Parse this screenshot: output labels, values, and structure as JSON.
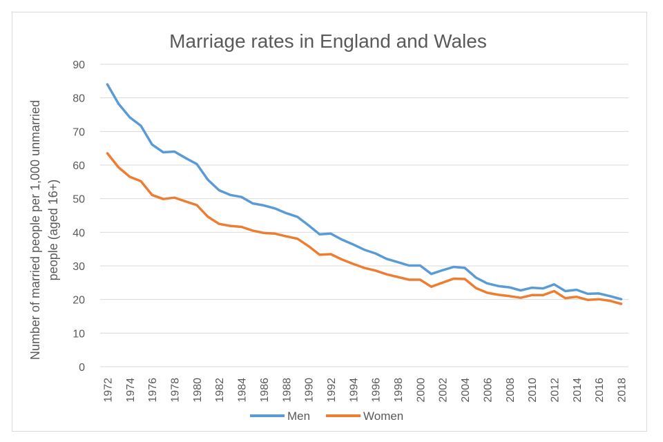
{
  "chart_data": {
    "type": "line",
    "title": "Marriage rates in England and Wales",
    "xlabel": "",
    "ylabel_lines": [
      "Number of married people per 1,000 unmarried",
      "people (aged 16+)"
    ],
    "ylim": [
      0,
      90
    ],
    "yticks": [
      0,
      10,
      20,
      30,
      40,
      50,
      60,
      70,
      80,
      90
    ],
    "grid": true,
    "legend_position": "bottom",
    "x": [
      1972,
      1973,
      1974,
      1975,
      1976,
      1977,
      1978,
      1979,
      1980,
      1981,
      1982,
      1983,
      1984,
      1985,
      1986,
      1987,
      1988,
      1989,
      1990,
      1991,
      1992,
      1993,
      1994,
      1995,
      1996,
      1997,
      1998,
      1999,
      2000,
      2001,
      2002,
      2003,
      2004,
      2005,
      2006,
      2007,
      2008,
      2009,
      2010,
      2011,
      2012,
      2013,
      2014,
      2015,
      2016,
      2017,
      2018
    ],
    "xtick_labels": [
      "1972",
      "1974",
      "1976",
      "1978",
      "1980",
      "1982",
      "1984",
      "1986",
      "1988",
      "1990",
      "1992",
      "1994",
      "1996",
      "1998",
      "2000",
      "2002",
      "2004",
      "2006",
      "2008",
      "2010",
      "2012",
      "2014",
      "2016",
      "2018"
    ],
    "series": [
      {
        "name": "Men",
        "color": "#5b9bd5",
        "values": [
          84.0,
          78.2,
          74.2,
          71.7,
          66.1,
          63.8,
          64.0,
          62.1,
          60.3,
          55.6,
          52.5,
          51.1,
          50.5,
          48.6,
          48.0,
          47.1,
          45.7,
          44.6,
          42.1,
          39.4,
          39.6,
          37.8,
          36.4,
          34.8,
          33.7,
          32.1,
          31.1,
          30.1,
          30.1,
          27.6,
          28.7,
          29.7,
          29.4,
          26.5,
          24.8,
          24.0,
          23.6,
          22.7,
          23.5,
          23.3,
          24.5,
          22.5,
          22.9,
          21.7,
          21.8,
          21.0,
          20.1
        ]
      },
      {
        "name": "Women",
        "color": "#ed7d31",
        "values": [
          63.5,
          59.3,
          56.5,
          55.2,
          51.1,
          49.9,
          50.3,
          49.2,
          48.1,
          44.6,
          42.5,
          41.9,
          41.6,
          40.5,
          39.8,
          39.6,
          38.8,
          38.1,
          35.9,
          33.3,
          33.5,
          31.9,
          30.6,
          29.4,
          28.6,
          27.5,
          26.7,
          25.9,
          25.9,
          23.8,
          25.0,
          26.2,
          26.1,
          23.4,
          22.0,
          21.4,
          21.0,
          20.5,
          21.3,
          21.3,
          22.5,
          20.4,
          20.8,
          19.9,
          20.1,
          19.6,
          18.7
        ]
      }
    ]
  }
}
